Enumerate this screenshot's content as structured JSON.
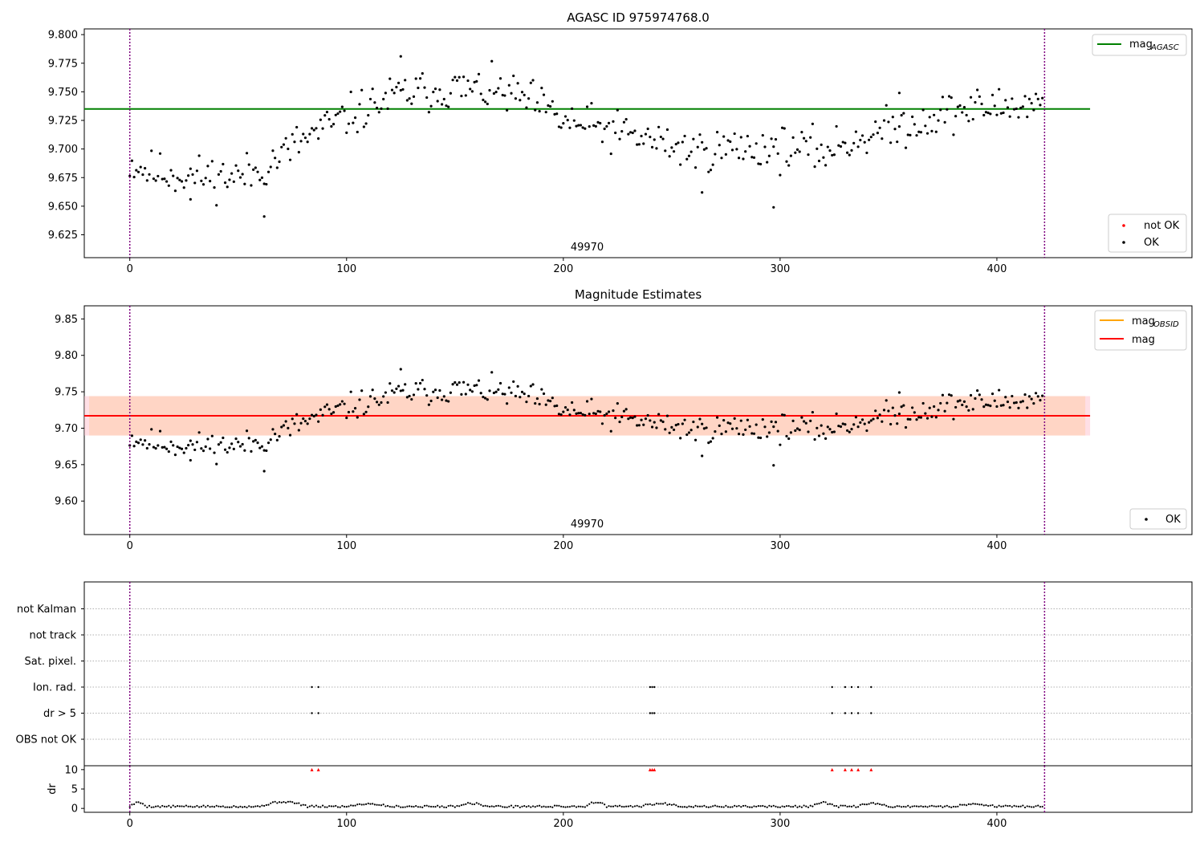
{
  "colors": {
    "agasc_line": "#008000",
    "mag_line": "#ff0000",
    "mag_obsid": "#ffa500",
    "band_outer": "#ffc0cb",
    "band_inner": "#ffd0b8",
    "ok_point": "#000000",
    "not_ok_point": "#ff0000",
    "obs_boundary": "#800080",
    "grid": "#b0b0b0"
  },
  "chart_data": [
    {
      "id": "agasc",
      "type": "scatter",
      "title": "AGASC ID 975974768.0",
      "xlim": [
        -21,
        490
      ],
      "ylim": [
        9.605,
        9.805
      ],
      "yticks": [
        9.625,
        9.65,
        9.675,
        9.7,
        9.725,
        9.75,
        9.775,
        9.8
      ],
      "yticklabels": [
        "9.625",
        "9.650",
        "9.675",
        "9.700",
        "9.725",
        "9.750",
        "9.775",
        "9.800"
      ],
      "xticks": [
        0,
        100,
        200,
        300,
        400
      ],
      "xticklabels": [
        "0",
        "100",
        "200",
        "300",
        "400"
      ],
      "obs_boundaries": [
        0,
        422
      ],
      "obsid_label": "49970",
      "obsid_label_x": 211,
      "hline": {
        "y": 9.735,
        "x0": -21,
        "x1": 443
      },
      "legend_top": [
        {
          "label": "mag",
          "subscript": "AGASC",
          "kind": "line",
          "color": "#008000"
        }
      ],
      "legend_bottom": [
        {
          "label": "not OK",
          "kind": "point",
          "color": "#ff0000"
        },
        {
          "label": "OK",
          "kind": "point",
          "color": "#000000"
        }
      ],
      "trend": {
        "x": [
          0,
          10,
          30,
          50,
          60,
          65,
          80,
          100,
          125,
          150,
          170,
          185,
          200,
          220,
          240,
          260,
          280,
          300,
          320,
          340,
          360,
          380,
          400,
          422
        ],
        "y": [
          9.688,
          9.68,
          9.676,
          9.676,
          9.681,
          9.688,
          9.708,
          9.728,
          9.748,
          9.753,
          9.75,
          9.742,
          9.724,
          9.717,
          9.708,
          9.698,
          9.701,
          9.701,
          9.698,
          9.712,
          9.722,
          9.733,
          9.737,
          9.74
        ]
      },
      "n_points": 422,
      "noise": 0.0115,
      "seed": 11,
      "outliers": [
        {
          "x": 62,
          "y": 9.641
        },
        {
          "x": 125,
          "y": 9.781
        },
        {
          "x": 297,
          "y": 9.649
        },
        {
          "x": 264,
          "y": 9.662
        },
        {
          "x": 355,
          "y": 9.749
        },
        {
          "x": 28,
          "y": 9.656
        }
      ]
    },
    {
      "id": "estimates",
      "type": "scatter",
      "title": "Magnitude Estimates",
      "xlim": [
        -21,
        490
      ],
      "ylim": [
        9.554,
        9.868
      ],
      "yticks": [
        9.6,
        9.65,
        9.7,
        9.75,
        9.8,
        9.85
      ],
      "yticklabels": [
        "9.60",
        "9.65",
        "9.70",
        "9.75",
        "9.80",
        "9.85"
      ],
      "xticks": [
        0,
        100,
        200,
        300,
        400
      ],
      "xticklabels": [
        "0",
        "100",
        "200",
        "300",
        "400"
      ],
      "obs_boundaries": [
        0,
        422
      ],
      "obsid_label": "49970",
      "obsid_label_x": 211,
      "mag_line": {
        "y": 9.717,
        "x0": -21,
        "x1": 443
      },
      "band_outer": [
        9.69,
        9.744
      ],
      "band_inner": [
        9.69,
        9.744
      ],
      "legend_top": [
        {
          "label": "mag",
          "subscript": "OBSID",
          "kind": "line",
          "color": "#ffa500"
        },
        {
          "label": "mag",
          "subscript": "",
          "kind": "line",
          "color": "#ff0000"
        }
      ],
      "legend_bottom": [
        {
          "label": "OK",
          "kind": "point",
          "color": "#000000"
        }
      ],
      "trend": {
        "x": [
          0,
          10,
          30,
          50,
          60,
          65,
          80,
          100,
          125,
          150,
          170,
          185,
          200,
          220,
          240,
          260,
          280,
          300,
          320,
          340,
          360,
          380,
          400,
          422
        ],
        "y": [
          9.688,
          9.68,
          9.676,
          9.676,
          9.681,
          9.688,
          9.708,
          9.728,
          9.748,
          9.753,
          9.75,
          9.742,
          9.724,
          9.717,
          9.708,
          9.698,
          9.701,
          9.701,
          9.698,
          9.712,
          9.722,
          9.733,
          9.737,
          9.74
        ]
      },
      "n_points": 422,
      "noise": 0.0115,
      "seed": 11,
      "outliers": [
        {
          "x": 62,
          "y": 9.641
        },
        {
          "x": 125,
          "y": 9.781
        },
        {
          "x": 297,
          "y": 9.649
        },
        {
          "x": 264,
          "y": 9.662
        },
        {
          "x": 355,
          "y": 9.749
        },
        {
          "x": 28,
          "y": 9.656
        }
      ]
    },
    {
      "id": "flags",
      "type": "scatter",
      "title": "",
      "xlim": [
        -21,
        490
      ],
      "categories": [
        "OBS not OK",
        "dr > 5",
        "Ion. rad.",
        "Sat. pixel.",
        "not track",
        "not Kalman"
      ],
      "flagged": {
        "Ion. rad.": [
          84,
          87,
          240,
          241,
          242,
          324,
          330,
          333,
          336,
          342
        ],
        "dr > 5": [
          84,
          87,
          240,
          241,
          242,
          324,
          330,
          333,
          336,
          342
        ]
      },
      "obs_boundaries": [
        0,
        422
      ]
    },
    {
      "id": "dr",
      "type": "scatter",
      "title": "",
      "xlim": [
        -21,
        490
      ],
      "ylim": [
        -1,
        11
      ],
      "yticks": [
        0,
        5,
        10
      ],
      "yticklabels": [
        "0",
        "5",
        "10"
      ],
      "xticks": [
        0,
        100,
        200,
        300,
        400
      ],
      "xticklabels": [
        "0",
        "100",
        "200",
        "300",
        "400"
      ],
      "ylabel": "dr",
      "obs_boundaries": [
        0,
        422
      ],
      "n_points": 422,
      "base": 0.5,
      "bumps": [
        {
          "x0": 0,
          "x1": 8,
          "amp": 1.0
        },
        {
          "x0": 60,
          "x1": 82,
          "amp": 1.2
        },
        {
          "x0": 100,
          "x1": 120,
          "amp": 0.7
        },
        {
          "x0": 150,
          "x1": 165,
          "amp": 0.8
        },
        {
          "x0": 210,
          "x1": 220,
          "amp": 1.1
        },
        {
          "x0": 235,
          "x1": 255,
          "amp": 0.7
        },
        {
          "x0": 315,
          "x1": 325,
          "amp": 1.0
        },
        {
          "x0": 335,
          "x1": 350,
          "amp": 0.7
        },
        {
          "x0": 380,
          "x1": 400,
          "amp": 0.6
        }
      ],
      "not_ok_x": [
        84,
        87,
        240,
        241,
        242,
        324,
        330,
        333,
        336,
        342
      ],
      "not_ok_y": 10
    }
  ]
}
